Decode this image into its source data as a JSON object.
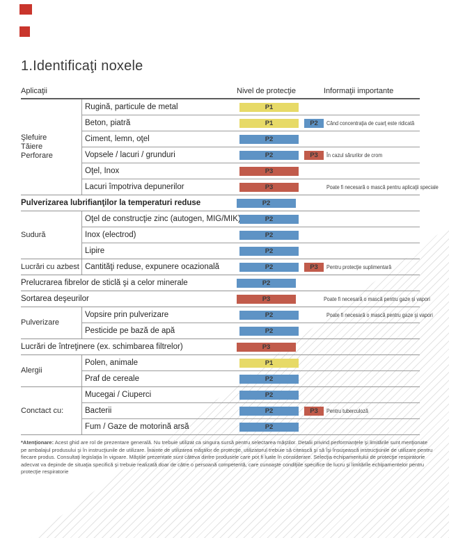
{
  "page": {
    "title": "1.Identificaţi noxele"
  },
  "theme": {
    "accent-red": "#c9352c",
    "hatch-line": "#e3e3e3"
  },
  "levels": {
    "P1": "#e7da67",
    "P2": "#5e93c5",
    "P3": "#c15b4b"
  },
  "header": {
    "col_app": "Aplicaţii",
    "col_level": "Nivel de protecţie",
    "col_info": "Informaţii importante"
  },
  "sections": [
    {
      "group": "Şlefuire\nTăiere\nPerforare",
      "rows": [
        {
          "label": "Rugină, particule de metal",
          "level": "P1"
        },
        {
          "label": "Beton, piatră",
          "level": "P1",
          "extra": "P2",
          "note": "Când concentraţia de cuarţ este ridicată"
        },
        {
          "label": "Ciment, lemn, oţel",
          "level": "P2"
        },
        {
          "label": "Vopsele / lacuri / grunduri",
          "level": "P2",
          "extra": "P3",
          "note": "În cazul sărurilor de crom"
        },
        {
          "label": "Oţel, Inox",
          "level": "P3"
        },
        {
          "label": "Lacuri împotriva depunerilor",
          "level": "P3",
          "note": "Poate fi necesară o mască pentru aplicaţii speciale"
        }
      ]
    },
    {
      "group": "",
      "rows": [
        {
          "label": "Pulverizarea lubrifianţilor la temperaturi reduse",
          "level": "P2"
        }
      ]
    },
    {
      "group": "Sudură",
      "rows": [
        {
          "label": "Oţel de construcţie zinc (autogen, MIG/MIK)",
          "level": "P2"
        },
        {
          "label": "Inox (electrod)",
          "level": "P2"
        },
        {
          "label": "Lipire",
          "level": "P2"
        }
      ]
    },
    {
      "group": "Lucrări cu azbest",
      "rows": [
        {
          "label": "Cantităţi reduse, expunere ocazională",
          "level": "P2",
          "extra": "P3",
          "note": "Pentru protecţie suplimentară"
        }
      ]
    },
    {
      "group": "",
      "rows": [
        {
          "label": "Prelucrarea fibrelor de sticlă şi a celor minerale",
          "level": "P2"
        }
      ]
    },
    {
      "group": "",
      "rows": [
        {
          "label": "Sortarea deşeurilor",
          "level": "P3",
          "note": "Poate fi necesară o mască pentru gaze şi vapori"
        }
      ]
    },
    {
      "group": "Pulverizare",
      "rows": [
        {
          "label": "Vopsire prin pulverizare",
          "level": "P2",
          "note": "Poate fi necesară o mască pentru gaze şi vapori"
        },
        {
          "label": "Pesticide pe bază de apă",
          "level": "P2"
        }
      ]
    },
    {
      "group": "",
      "rows": [
        {
          "label": "Lucrări de întreţinere (ex. schimbarea filtrelor)",
          "level": "P3"
        }
      ]
    },
    {
      "group": "Alergii",
      "rows": [
        {
          "label": "Polen, animale",
          "level": "P1"
        },
        {
          "label": "Praf de cereale",
          "level": "P2"
        }
      ]
    },
    {
      "group": "Conctact cu:",
      "rows": [
        {
          "label": "Mucegai / Ciuperci",
          "level": "P2"
        },
        {
          "label": "Bacterii",
          "level": "P2",
          "extra": "P3",
          "note": "Pentru tuberculoză"
        },
        {
          "label": "Fum / Gaze de motorină arsă",
          "level": "P2"
        }
      ]
    }
  ],
  "footer": {
    "lead": "*Atenţionare:",
    "text": " Acest ghid are rol de prezentare generală. Nu trebuie utilizat ca singura sursă pentru selectarea măştilor. Detalii privind performanţele şi limitările sunt menţionate pe ambalajul produsului şi în instrucţiunile de utilizare. Înainte de utilizarea măştilor de protecţie, utilizatorul trebuie să citească şi să îşi însuşească instrucţiunile de utilizare pentru fiecare produs. Consultaţi legislaţia în vigoare. Măştile prezentate sunt câteva dintre produsele care pot fi luate în considerare. Selecţia echipamentului de protecţie respiratorie adecvat va depinde de situaţia specifică şi trebuie realizată doar de către o persoană competentă, care cunoaşte condiţiile specifice de lucru şi limitările echipamentelor pentru protecţie respiratorie"
  }
}
